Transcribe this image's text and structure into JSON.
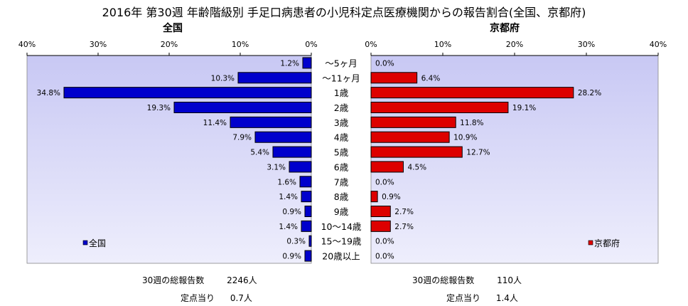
{
  "title": "2016年 第30週 年齢階級別 手足口病患者の小児科定点医療機関からの報告割合(全国、京都府)",
  "chart_data": [
    {
      "type": "bar",
      "orientation": "horizontal",
      "direction": "right-to-left",
      "title": "全国",
      "categories": [
        "〜5ヶ月",
        "〜11ヶ月",
        "1歳",
        "2歳",
        "3歳",
        "4歳",
        "5歳",
        "6歳",
        "7歳",
        "8歳",
        "9歳",
        "10〜14歳",
        "15〜19歳",
        "20歳以上"
      ],
      "series": [
        {
          "name": "全国",
          "color": "#0000cc",
          "values": [
            1.2,
            10.3,
            34.8,
            19.3,
            11.4,
            7.9,
            5.4,
            3.1,
            1.6,
            1.4,
            0.9,
            1.4,
            0.3,
            0.9
          ]
        }
      ],
      "value_labels": [
        "1.2%",
        "10.3%",
        "34.8%",
        "19.3%",
        "11.4%",
        "7.9%",
        "5.4%",
        "3.1%",
        "1.6%",
        "1.4%",
        "0.9%",
        "1.4%",
        "0.3%",
        "0.9%"
      ],
      "xlim": [
        0,
        40
      ],
      "ticks": [
        "0%",
        "10%",
        "20%",
        "30%",
        "40%"
      ],
      "legend": "lower-left",
      "grid": false
    },
    {
      "type": "bar",
      "orientation": "horizontal",
      "direction": "left-to-right",
      "title": "京都府",
      "categories": [
        "〜5ヶ月",
        "〜11ヶ月",
        "1歳",
        "2歳",
        "3歳",
        "4歳",
        "5歳",
        "6歳",
        "7歳",
        "8歳",
        "9歳",
        "10〜14歳",
        "15〜19歳",
        "20歳以上"
      ],
      "series": [
        {
          "name": "京都府",
          "color": "#dd0000",
          "values": [
            0.0,
            6.4,
            28.2,
            19.1,
            11.8,
            10.9,
            12.7,
            4.5,
            0.0,
            0.9,
            2.7,
            2.7,
            0.0,
            0.0
          ]
        }
      ],
      "value_labels": [
        "0.0%",
        "6.4%",
        "28.2%",
        "19.1%",
        "11.8%",
        "10.9%",
        "12.7%",
        "4.5%",
        "0.0%",
        "0.9%",
        "2.7%",
        "2.7%",
        "0.0%",
        "0.0%"
      ],
      "xlim": [
        0,
        40
      ],
      "ticks": [
        "0%",
        "10%",
        "20%",
        "30%",
        "40%"
      ],
      "legend": "lower-right",
      "grid": false
    }
  ],
  "summary": {
    "national": {
      "total_label": "30週の総報告数",
      "total_value": "2246人",
      "per_label": "定点当り",
      "per_value": "0.7人"
    },
    "kyoto": {
      "total_label": "30週の総報告数",
      "total_value": "110人",
      "per_label": "定点当り",
      "per_value": "1.4人"
    }
  },
  "colors": {
    "plot_background_top": "#c8c8f4",
    "plot_background_bottom": "#eeeefc",
    "national_bar": "#0000cc",
    "kyoto_bar": "#dd0000"
  }
}
